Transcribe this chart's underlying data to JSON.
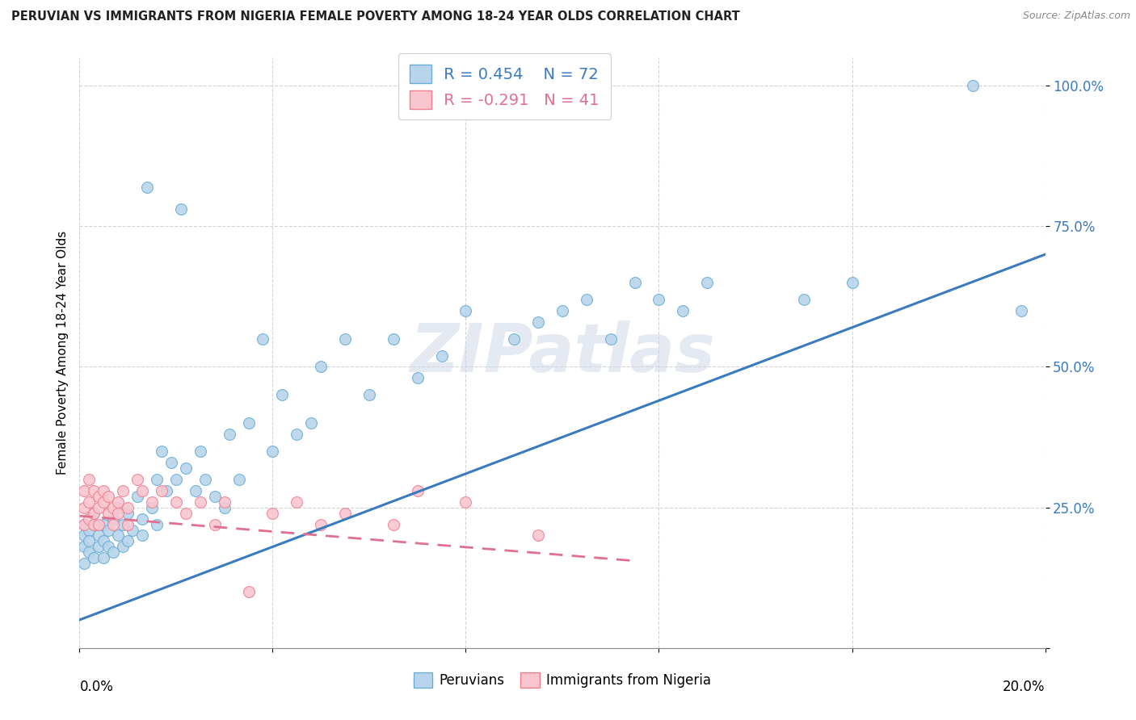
{
  "title": "PERUVIAN VS IMMIGRANTS FROM NIGERIA FEMALE POVERTY AMONG 18-24 YEAR OLDS CORRELATION CHART",
  "source": "Source: ZipAtlas.com",
  "ylabel": "Female Poverty Among 18-24 Year Olds",
  "peruvian_color": "#b8d4ea",
  "peruvian_edge": "#6aaed6",
  "nigeria_color": "#f9c6d0",
  "nigeria_edge": "#f08090",
  "line_peru_color": "#3a7abf",
  "line_nigeria_color": "#e07090",
  "R_peru": 0.454,
  "N_peru": 72,
  "R_nigeria": -0.291,
  "N_nigeria": 41,
  "legend_label_peru": "Peruvians",
  "legend_label_nigeria": "Immigrants from Nigeria",
  "watermark": "ZIPatlas",
  "xlim": [
    0,
    0.2
  ],
  "ylim": [
    0,
    1.05
  ],
  "x_ticks": [
    0,
    0.04,
    0.08,
    0.12,
    0.16,
    0.2
  ],
  "y_ticks": [
    0.0,
    0.25,
    0.5,
    0.75,
    1.0
  ],
  "y_tick_labels": [
    "",
    "25.0%",
    "50.0%",
    "75.0%",
    "100.0%"
  ],
  "peru_line_x": [
    0.0,
    0.2
  ],
  "peru_line_y": [
    0.05,
    0.7
  ],
  "nigeria_line_x": [
    0.0,
    0.115
  ],
  "nigeria_line_y": [
    0.235,
    0.155
  ],
  "peruvian_x": [
    0.001,
    0.001,
    0.001,
    0.001,
    0.002,
    0.002,
    0.002,
    0.003,
    0.003,
    0.003,
    0.004,
    0.004,
    0.005,
    0.005,
    0.005,
    0.006,
    0.006,
    0.007,
    0.007,
    0.008,
    0.008,
    0.009,
    0.009,
    0.01,
    0.01,
    0.011,
    0.012,
    0.013,
    0.013,
    0.014,
    0.015,
    0.016,
    0.016,
    0.017,
    0.018,
    0.019,
    0.02,
    0.021,
    0.022,
    0.024,
    0.025,
    0.026,
    0.028,
    0.03,
    0.031,
    0.033,
    0.035,
    0.038,
    0.04,
    0.042,
    0.045,
    0.048,
    0.05,
    0.055,
    0.06,
    0.065,
    0.07,
    0.075,
    0.08,
    0.09,
    0.095,
    0.1,
    0.105,
    0.11,
    0.115,
    0.12,
    0.125,
    0.13,
    0.15,
    0.16,
    0.185,
    0.195
  ],
  "peruvian_y": [
    0.2,
    0.22,
    0.18,
    0.15,
    0.17,
    0.21,
    0.19,
    0.22,
    0.16,
    0.24,
    0.2,
    0.18,
    0.19,
    0.22,
    0.16,
    0.21,
    0.18,
    0.23,
    0.17,
    0.2,
    0.25,
    0.18,
    0.22,
    0.19,
    0.24,
    0.21,
    0.27,
    0.23,
    0.2,
    0.82,
    0.25,
    0.3,
    0.22,
    0.35,
    0.28,
    0.33,
    0.3,
    0.78,
    0.32,
    0.28,
    0.35,
    0.3,
    0.27,
    0.25,
    0.38,
    0.3,
    0.4,
    0.55,
    0.35,
    0.45,
    0.38,
    0.4,
    0.5,
    0.55,
    0.45,
    0.55,
    0.48,
    0.52,
    0.6,
    0.55,
    0.58,
    0.6,
    0.62,
    0.55,
    0.65,
    0.62,
    0.6,
    0.65,
    0.62,
    0.65,
    1.0,
    0.6
  ],
  "nigeria_x": [
    0.001,
    0.001,
    0.001,
    0.002,
    0.002,
    0.002,
    0.003,
    0.003,
    0.003,
    0.004,
    0.004,
    0.004,
    0.005,
    0.005,
    0.006,
    0.006,
    0.007,
    0.007,
    0.008,
    0.008,
    0.009,
    0.01,
    0.01,
    0.012,
    0.013,
    0.015,
    0.017,
    0.02,
    0.022,
    0.025,
    0.028,
    0.03,
    0.035,
    0.04,
    0.045,
    0.05,
    0.055,
    0.065,
    0.07,
    0.08,
    0.095
  ],
  "nigeria_y": [
    0.28,
    0.25,
    0.22,
    0.3,
    0.26,
    0.23,
    0.28,
    0.24,
    0.22,
    0.27,
    0.25,
    0.22,
    0.26,
    0.28,
    0.24,
    0.27,
    0.25,
    0.22,
    0.26,
    0.24,
    0.28,
    0.25,
    0.22,
    0.3,
    0.28,
    0.26,
    0.28,
    0.26,
    0.24,
    0.26,
    0.22,
    0.26,
    0.1,
    0.24,
    0.26,
    0.22,
    0.24,
    0.22,
    0.28,
    0.26,
    0.2
  ]
}
